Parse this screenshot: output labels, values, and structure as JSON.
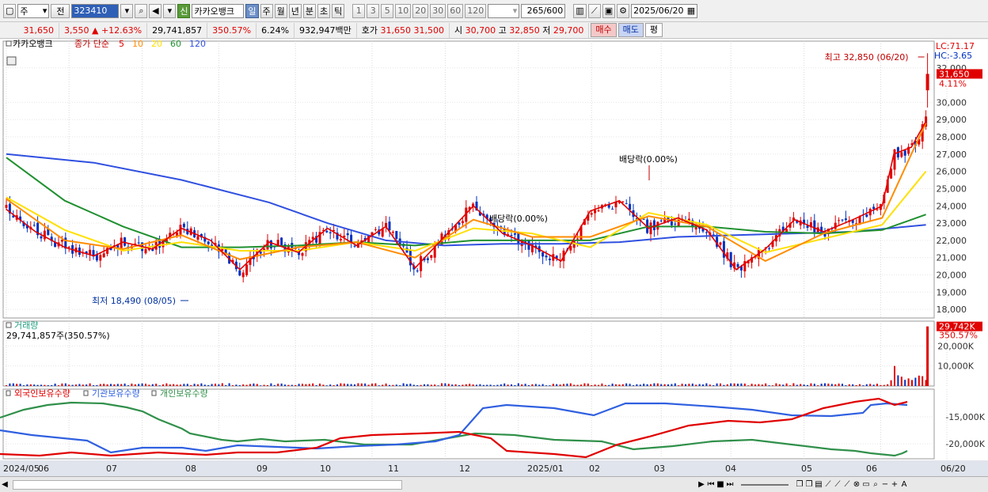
{
  "toolbar": {
    "market": "주",
    "prev_label": "전",
    "code": "323410",
    "sin_label": "신",
    "stock_name": "카카오뱅크",
    "periods": [
      "일",
      "주",
      "월",
      "년",
      "분",
      "초",
      "틱"
    ],
    "intervals": [
      "1",
      "3",
      "5",
      "10",
      "20",
      "30",
      "60",
      "120"
    ],
    "count": "265",
    "count_max": "/600",
    "date": "2025/06/20"
  },
  "quote": {
    "price": "31,650",
    "change": "3,550",
    "change_pct": "+12.63%",
    "volume": "29,741,857",
    "volume_ratio": "350.57%",
    "turnover": "6.24%",
    "amount": "932,947백만",
    "bid_label": "호가",
    "ask": "31,650",
    "bid": "31,500",
    "open_label": "시",
    "open": "30,700",
    "high_label": "고",
    "high": "32,850",
    "low_label": "저",
    "low": "29,700",
    "buy_label": "매수",
    "sell_label": "매도",
    "eval_label": "평"
  },
  "colors": {
    "up": "#e00000",
    "down": "#0030c0",
    "ma5": "#e00000",
    "ma10": "#ff8c00",
    "ma20": "#ffe000",
    "ma60": "#209030",
    "ma120": "#3050e0",
    "foreign": "#e00000",
    "institution": "#3060e0",
    "individual": "#30904a"
  },
  "chart_data": {
    "type": "candlestick",
    "price_panel": {
      "legend": {
        "name": "카카오뱅크",
        "series": "종가 단순",
        "ma": [
          "5",
          "10",
          "20",
          "60",
          "120"
        ]
      },
      "lc": "LC:71.17",
      "hc": "HC:-3.65",
      "yticks": [
        "32,000",
        "30,000",
        "29,000",
        "28,000",
        "27,000",
        "26,000",
        "25,000",
        "24,000",
        "23,000",
        "22,000",
        "21,000",
        "20,000",
        "19,000",
        "18,000"
      ],
      "ylim": [
        17500,
        33000
      ],
      "last_price": "31,650",
      "last_pct": "4.11%",
      "high_annotation": "최고 32,850 (06/20)",
      "low_annotation": "최저 18,490 (08/05)",
      "dividend_labels": [
        "배당락(0.00%)",
        "배당락(0.00%)"
      ],
      "ma_points": {
        "ma5": [
          [
            0,
            23800
          ],
          [
            10,
            22500
          ],
          [
            20,
            21600
          ],
          [
            30,
            21100
          ],
          [
            40,
            21900
          ],
          [
            50,
            21500
          ],
          [
            60,
            22700
          ],
          [
            70,
            22000
          ],
          [
            80,
            20300
          ],
          [
            90,
            21900
          ],
          [
            100,
            21300
          ],
          [
            110,
            22700
          ],
          [
            120,
            21700
          ],
          [
            130,
            22800
          ],
          [
            140,
            20400
          ],
          [
            150,
            22200
          ],
          [
            160,
            24000
          ],
          [
            170,
            22400
          ],
          [
            180,
            21700
          ],
          [
            190,
            20800
          ],
          [
            200,
            23700
          ],
          [
            210,
            24300
          ],
          [
            220,
            22700
          ],
          [
            230,
            23300
          ],
          [
            240,
            22600
          ],
          [
            250,
            20300
          ],
          [
            260,
            21500
          ],
          [
            270,
            23200
          ],
          [
            280,
            22500
          ],
          [
            290,
            23200
          ],
          [
            300,
            24000
          ],
          [
            304,
            27000
          ],
          [
            310,
            27400
          ],
          [
            315,
            28900
          ]
        ],
        "ma10": [
          [
            0,
            24400
          ],
          [
            20,
            22000
          ],
          [
            40,
            21500
          ],
          [
            60,
            22300
          ],
          [
            80,
            20900
          ],
          [
            100,
            21600
          ],
          [
            120,
            21900
          ],
          [
            140,
            21000
          ],
          [
            160,
            23200
          ],
          [
            180,
            22200
          ],
          [
            200,
            22200
          ],
          [
            220,
            23400
          ],
          [
            240,
            22800
          ],
          [
            260,
            20800
          ],
          [
            280,
            22400
          ],
          [
            300,
            23300
          ],
          [
            310,
            27000
          ],
          [
            315,
            28800
          ]
        ],
        "ma20": [
          [
            0,
            24500
          ],
          [
            20,
            22600
          ],
          [
            40,
            21400
          ],
          [
            60,
            21900
          ],
          [
            80,
            21400
          ],
          [
            100,
            21400
          ],
          [
            120,
            21900
          ],
          [
            140,
            21400
          ],
          [
            160,
            22700
          ],
          [
            180,
            22400
          ],
          [
            200,
            21600
          ],
          [
            220,
            23600
          ],
          [
            240,
            22900
          ],
          [
            260,
            21300
          ],
          [
            280,
            22100
          ],
          [
            300,
            22900
          ],
          [
            315,
            26000
          ]
        ],
        "ma60": [
          [
            0,
            26800
          ],
          [
            20,
            24300
          ],
          [
            40,
            22800
          ],
          [
            60,
            21600
          ],
          [
            80,
            21600
          ],
          [
            100,
            21700
          ],
          [
            120,
            21900
          ],
          [
            140,
            21700
          ],
          [
            160,
            22000
          ],
          [
            180,
            22000
          ],
          [
            200,
            22000
          ],
          [
            220,
            22800
          ],
          [
            240,
            22800
          ],
          [
            260,
            22500
          ],
          [
            280,
            22400
          ],
          [
            300,
            22600
          ],
          [
            315,
            23500
          ]
        ],
        "ma120": [
          [
            0,
            27000
          ],
          [
            30,
            26500
          ],
          [
            60,
            25500
          ],
          [
            90,
            24200
          ],
          [
            110,
            23000
          ],
          [
            130,
            22000
          ],
          [
            150,
            21700
          ],
          [
            170,
            21800
          ],
          [
            190,
            21800
          ],
          [
            210,
            21900
          ],
          [
            230,
            22200
          ],
          [
            250,
            22300
          ],
          [
            270,
            22400
          ],
          [
            290,
            22500
          ],
          [
            315,
            22900
          ]
        ]
      },
      "n_bars": 265,
      "seed": 323410
    },
    "volume_panel": {
      "title": "거래량",
      "value": "29,741,857주(350.57%)",
      "yticks": [
        "20,000K",
        "10,000K"
      ],
      "last": "29,742K",
      "last_pct": "350.57%"
    },
    "holding_panel": {
      "series": [
        "외국인보유수량",
        "기관보유수량",
        "개인보유수량"
      ],
      "yticks": [
        "-15,000K",
        "-20,000K"
      ]
    },
    "x_labels": [
      "2024/05",
      "06",
      "07",
      "08",
      "09",
      "10",
      "11",
      "12",
      "2025/01",
      "02",
      "03",
      "04",
      "05",
      "06",
      "06/20"
    ]
  }
}
